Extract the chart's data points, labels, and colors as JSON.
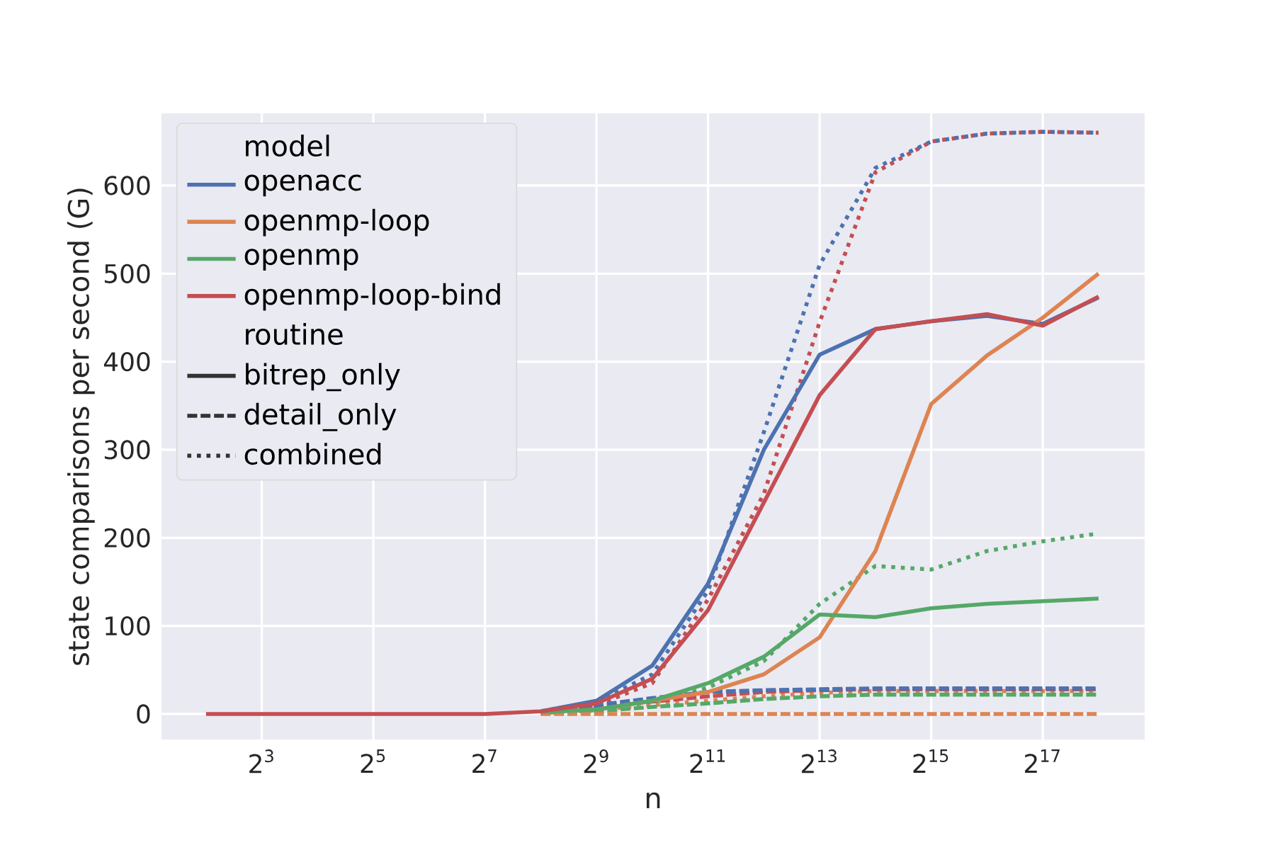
{
  "chart_data": {
    "type": "line",
    "xlabel": "n",
    "ylabel": "state comparisons per second (G)",
    "legend_title": "model",
    "annotations": [
      "routine",
      "bitrep_only",
      "detail_only",
      "combined"
    ],
    "x": [
      4,
      8,
      16,
      32,
      64,
      128,
      256,
      512,
      1024,
      2048,
      4096,
      8192,
      16384,
      32768,
      65536,
      131072,
      262144
    ],
    "log": "x",
    "grid": true,
    "legend": "top left",
    "marker": "none",
    "xlim": [
      2.3,
      465000
    ],
    "ylim": [
      -29,
      682
    ],
    "xticks": [
      {
        "value": 8,
        "label": "2$^{3}$"
      },
      {
        "value": 32,
        "label": "2$^{5}$"
      },
      {
        "value": 128,
        "label": "2$^{7}$"
      },
      {
        "value": 512,
        "label": "2$^{9}$"
      },
      {
        "value": 2048,
        "label": "2$^{11}$"
      },
      {
        "value": 8192,
        "label": "2$^{13}$"
      },
      {
        "value": 32768,
        "label": "2$^{15}$"
      },
      {
        "value": 131072,
        "label": "2$^{17}$"
      }
    ],
    "yticks": [
      0,
      100,
      200,
      300,
      400,
      500,
      600
    ],
    "series": [
      {
        "name": "openacc",
        "color": "#4c72b0",
        "line_style": "solid",
        "values": [
          null,
          null,
          null,
          null,
          null,
          null,
          3,
          15,
          55,
          148,
          300,
          408,
          437,
          446,
          452,
          443,
          473
        ]
      },
      {
        "name": "openmp-loop",
        "color": "#dd8452",
        "line_style": "solid",
        "values": [
          null,
          null,
          null,
          null,
          null,
          null,
          2,
          5,
          15,
          25,
          45,
          87,
          185,
          352,
          407,
          450,
          500
        ]
      },
      {
        "name": "openmp",
        "color": "#55a868",
        "line_style": "solid",
        "values": [
          null,
          null,
          null,
          null,
          null,
          null,
          2,
          5,
          15,
          35,
          65,
          113,
          110,
          120,
          125,
          128,
          131
        ]
      },
      {
        "name": "openmp-loop-bind",
        "color": "#c44e52",
        "line_style": "solid",
        "values": [
          0,
          0,
          0,
          0,
          0,
          0,
          3,
          12,
          40,
          118,
          240,
          362,
          437,
          446,
          454,
          441,
          474
        ]
      },
      {
        "color": "#4c72b0",
        "line_style": "dashed",
        "values": [
          null,
          null,
          null,
          null,
          null,
          null,
          2,
          10,
          18,
          25,
          27,
          28,
          29,
          29,
          29,
          29,
          29
        ]
      },
      {
        "color": "#dd8452",
        "line_style": "dashed",
        "values": [
          null,
          null,
          null,
          null,
          null,
          null,
          0,
          0,
          0,
          0,
          0,
          0,
          0,
          0,
          0,
          0,
          0
        ]
      },
      {
        "color": "#55a868",
        "line_style": "dashed",
        "values": [
          null,
          null,
          null,
          null,
          null,
          null,
          1,
          3,
          8,
          12,
          17,
          20,
          22,
          22,
          22,
          22,
          22
        ]
      },
      {
        "color": "#c44e52",
        "line_style": "dashed",
        "values": [
          null,
          null,
          null,
          null,
          null,
          null,
          2,
          8,
          14,
          20,
          25,
          27,
          28,
          28,
          28,
          28,
          28
        ]
      },
      {
        "color": "#4c72b0",
        "line_style": "dotted",
        "values": [
          null,
          null,
          null,
          null,
          null,
          null,
          3,
          14,
          45,
          140,
          320,
          510,
          620,
          650,
          659,
          661,
          660
        ]
      },
      {
        "color": "#dd8452",
        "line_style": "dotted",
        "values": [
          null,
          null,
          null,
          null,
          null,
          null,
          1,
          5,
          10,
          15,
          20,
          24,
          26,
          26,
          26,
          26,
          26
        ]
      },
      {
        "color": "#55a868",
        "line_style": "dotted",
        "values": [
          null,
          null,
          null,
          null,
          null,
          null,
          1,
          4,
          12,
          30,
          60,
          125,
          168,
          164,
          185,
          196,
          205
        ]
      },
      {
        "color": "#c44e52",
        "line_style": "dotted",
        "values": [
          null,
          null,
          null,
          null,
          null,
          null,
          2,
          10,
          35,
          130,
          250,
          445,
          615,
          650,
          659,
          661,
          660
        ]
      }
    ]
  }
}
